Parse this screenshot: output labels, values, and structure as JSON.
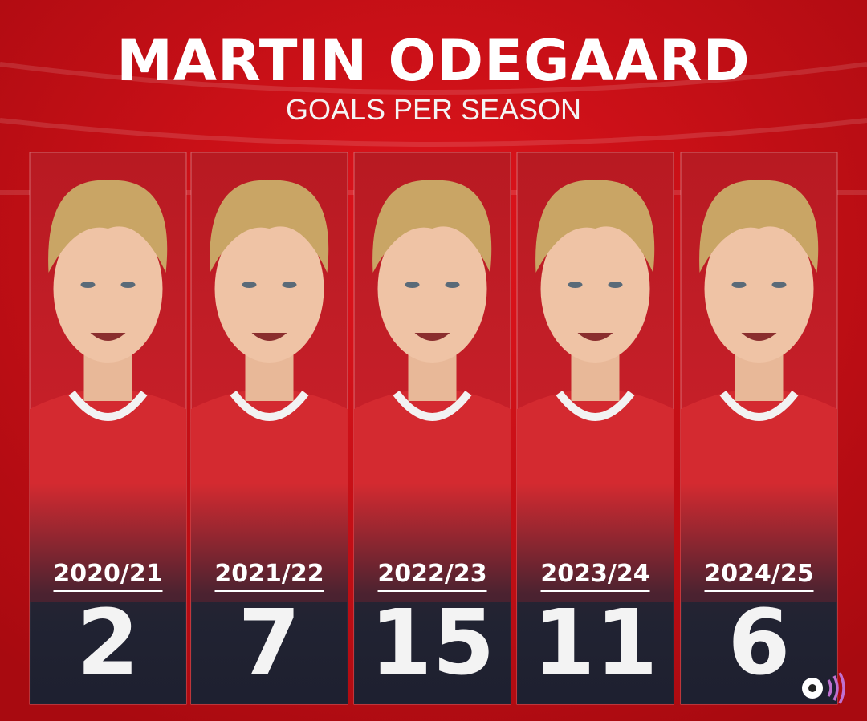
{
  "header": {
    "title": "MARTIN ODEGAARD",
    "subtitle": "GOALS PER SEASON"
  },
  "panels": [
    {
      "season": "2020/21",
      "goals": "2"
    },
    {
      "season": "2021/22",
      "goals": "7"
    },
    {
      "season": "2022/23",
      "goals": "15"
    },
    {
      "season": "2023/24",
      "goals": "11"
    },
    {
      "season": "2024/25",
      "goals": "6"
    }
  ]
}
